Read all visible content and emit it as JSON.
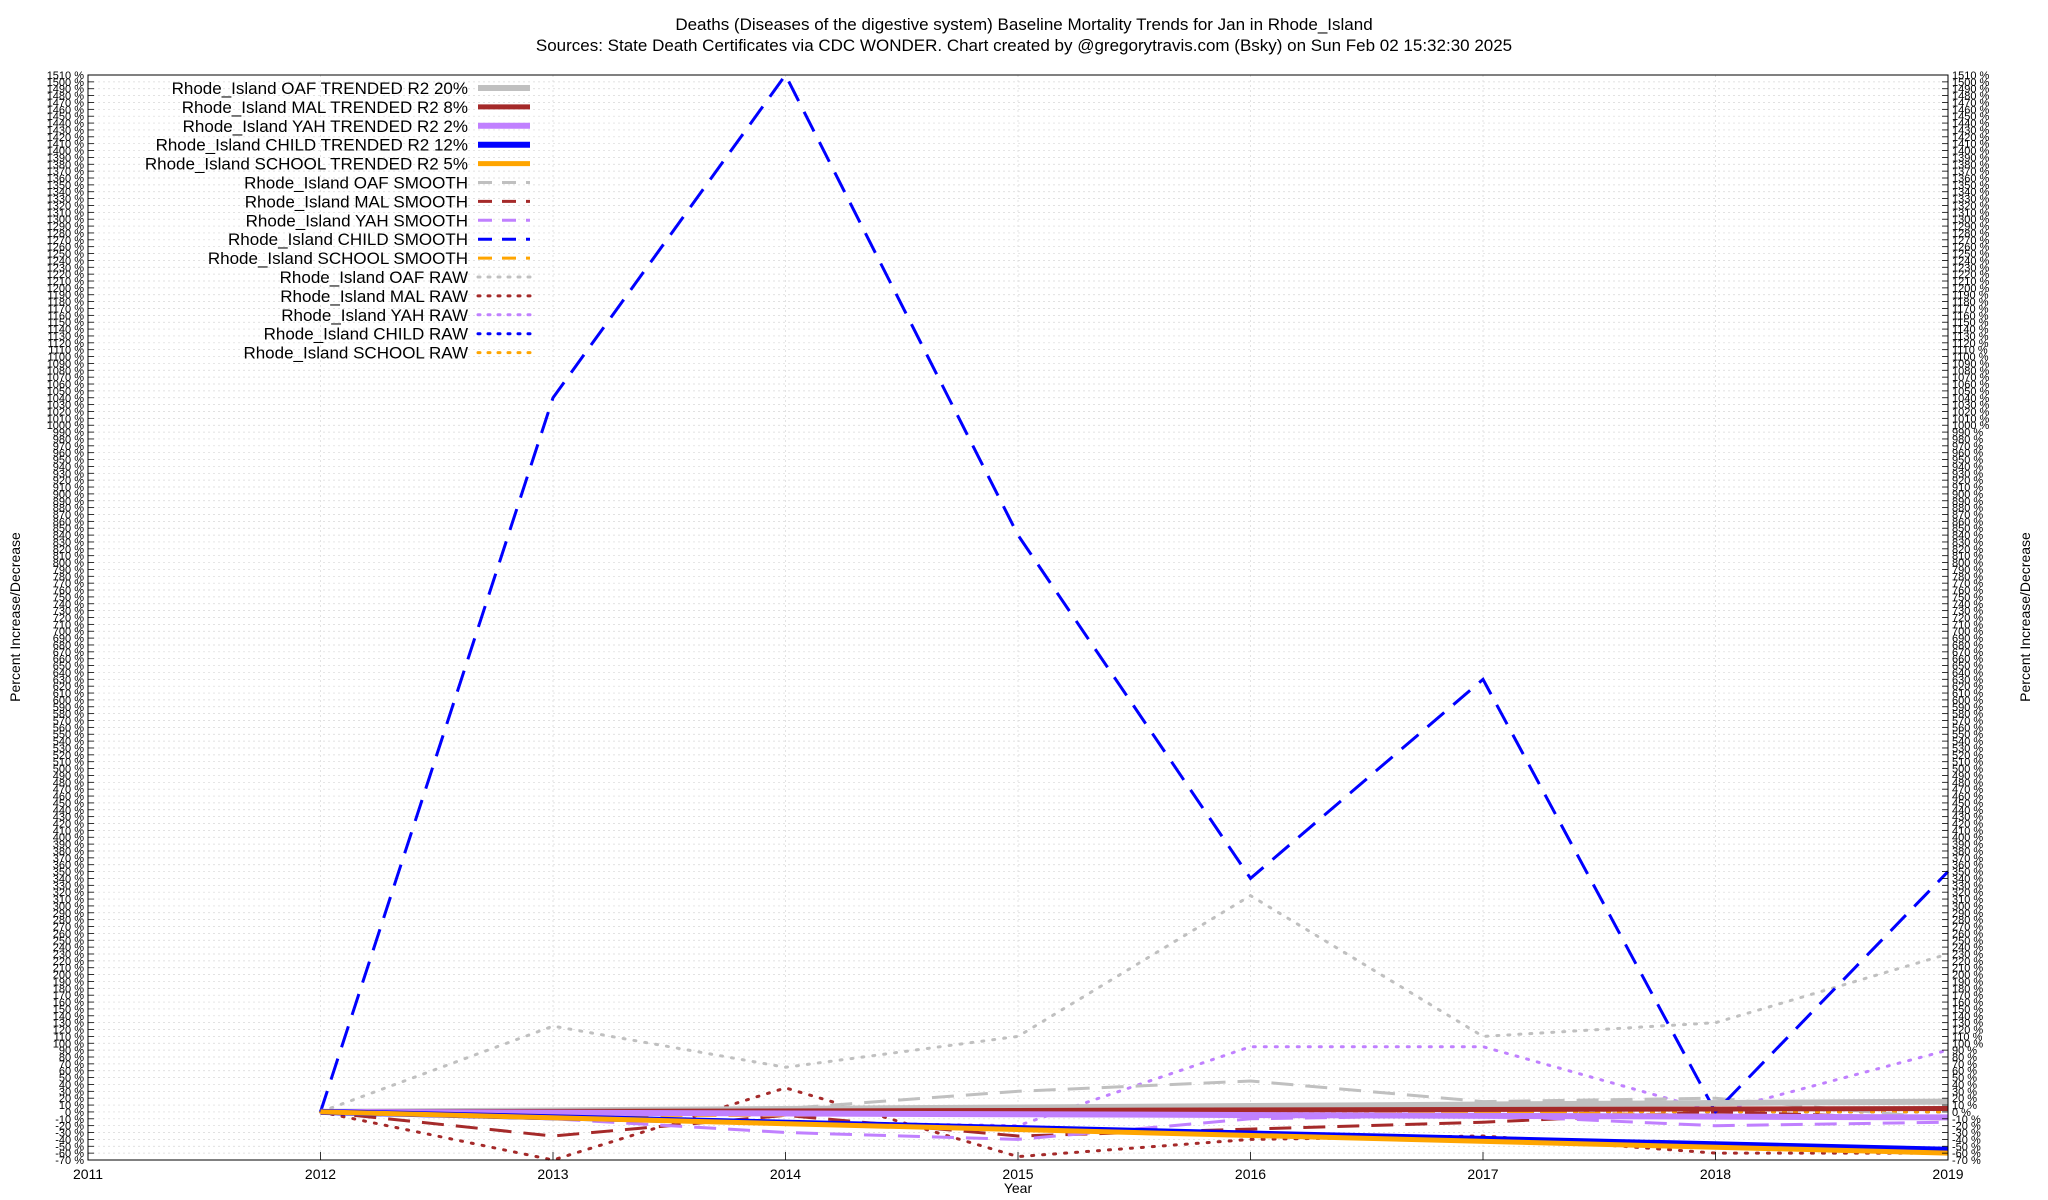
{
  "title_line1": "Deaths (Diseases of the digestive system)  Baseline Mortality Trends for Jan in Rhode_Island",
  "title_line2": "Sources: State Death Certificates via CDC WONDER.              Chart created by @gregorytravis.com (Bsky) on Sun Feb 02 15:32:30 2025",
  "chart_data": {
    "type": "line",
    "xlabel": "Year",
    "ylabel": "Percent Increase/Decrease",
    "ylabel_right": "Percent Increase/Decrease",
    "xlim": [
      2011,
      2019
    ],
    "ylim": [
      -70,
      1510
    ],
    "x_ticks": [
      2011,
      2012,
      2013,
      2014,
      2015,
      2016,
      2017,
      2018,
      2019
    ],
    "y_tick_start": -70,
    "y_tick_step": 10,
    "y_tick_suffix": " %",
    "grid": true,
    "legend_position": "top-left",
    "series": [
      {
        "name": "Rhode_Island OAF TRENDED R2  20%",
        "color": "#c0c0c0",
        "style": "solid",
        "width": 6,
        "x": [
          2012,
          2019
        ],
        "y": [
          0,
          15
        ]
      },
      {
        "name": "Rhode_Island MAL TRENDED R2   8%",
        "color": "#a52a2a",
        "style": "solid",
        "width": 5,
        "x": [
          2012,
          2019
        ],
        "y": [
          0,
          5
        ]
      },
      {
        "name": "Rhode_Island YAH TRENDED R2   2%",
        "color": "#c080ff",
        "style": "solid",
        "width": 6,
        "x": [
          2012,
          2019
        ],
        "y": [
          0,
          -8
        ]
      },
      {
        "name": "Rhode_Island CHILD TRENDED R2  12%",
        "color": "#0000ff",
        "style": "solid",
        "width": 6,
        "x": [
          2012,
          2019
        ],
        "y": [
          0,
          -55
        ]
      },
      {
        "name": "Rhode_Island SCHOOL TRENDED R2   5%",
        "color": "#ffa500",
        "style": "solid",
        "width": 5,
        "x": [
          2012,
          2019
        ],
        "y": [
          0,
          -60
        ]
      },
      {
        "name": "Rhode_Island OAF SMOOTH",
        "color": "#c0c0c0",
        "style": "dashed",
        "width": 3,
        "x": [
          2012,
          2013,
          2014,
          2015,
          2016,
          2017,
          2018,
          2019
        ],
        "y": [
          0,
          -5,
          5,
          30,
          45,
          15,
          20,
          -10
        ]
      },
      {
        "name": "Rhode_Island MAL SMOOTH",
        "color": "#a52a2a",
        "style": "dashed",
        "width": 3,
        "x": [
          2012,
          2013,
          2014,
          2015,
          2016,
          2017,
          2018,
          2019
        ],
        "y": [
          0,
          -35,
          -5,
          -35,
          -25,
          -15,
          0,
          -10
        ]
      },
      {
        "name": "Rhode_Island YAH SMOOTH",
        "color": "#c080ff",
        "style": "dashed",
        "width": 3,
        "x": [
          2012,
          2013,
          2014,
          2015,
          2016,
          2017,
          2018,
          2019
        ],
        "y": [
          0,
          -10,
          -30,
          -40,
          -10,
          -5,
          -20,
          -15
        ]
      },
      {
        "name": "Rhode_Island CHILD SMOOTH",
        "color": "#0000ff",
        "style": "dashed",
        "width": 3,
        "x": [
          2012,
          2013,
          2014,
          2015,
          2016,
          2017,
          2018,
          2019
        ],
        "y": [
          0,
          1040,
          1510,
          840,
          340,
          630,
          0,
          350
        ]
      },
      {
        "name": "Rhode_Island SCHOOL SMOOTH",
        "color": "#ffa500",
        "style": "dashed",
        "width": 3,
        "x": [
          2012,
          2013,
          2014,
          2015,
          2016,
          2017,
          2018,
          2019
        ],
        "y": [
          0,
          -5,
          -5,
          0,
          -5,
          0,
          -5,
          -10
        ]
      },
      {
        "name": "Rhode_Island OAF RAW",
        "color": "#c0c0c0",
        "style": "dotted",
        "width": 3,
        "x": [
          2012,
          2013,
          2014,
          2015,
          2016,
          2017,
          2018,
          2019
        ],
        "y": [
          0,
          125,
          65,
          110,
          315,
          110,
          130,
          230
        ]
      },
      {
        "name": "Rhode_Island MAL RAW",
        "color": "#a52a2a",
        "style": "dotted",
        "width": 3,
        "x": [
          2012,
          2013,
          2014,
          2015,
          2016,
          2017,
          2018,
          2019
        ],
        "y": [
          0,
          -70,
          35,
          -65,
          -40,
          -35,
          -60,
          -60
        ]
      },
      {
        "name": "Rhode_Island YAH RAW",
        "color": "#c080ff",
        "style": "dotted",
        "width": 3,
        "x": [
          2012,
          2013,
          2014,
          2015,
          2016,
          2017,
          2018,
          2019
        ],
        "y": [
          0,
          -5,
          -15,
          -20,
          95,
          95,
          0,
          90
        ]
      },
      {
        "name": "Rhode_Island CHILD RAW",
        "color": "#0000ff",
        "style": "dotted",
        "width": 3,
        "x": [
          2012,
          2013,
          2014,
          2015,
          2016,
          2017,
          2018,
          2019
        ],
        "y": [
          0,
          0,
          0,
          0,
          0,
          0,
          0,
          0
        ]
      },
      {
        "name": "Rhode_Island SCHOOL RAW",
        "color": "#ffa500",
        "style": "dotted",
        "width": 3,
        "x": [
          2012,
          2013,
          2014,
          2015,
          2016,
          2017,
          2018,
          2019
        ],
        "y": [
          0,
          0,
          0,
          0,
          0,
          0,
          0,
          0
        ]
      }
    ]
  }
}
